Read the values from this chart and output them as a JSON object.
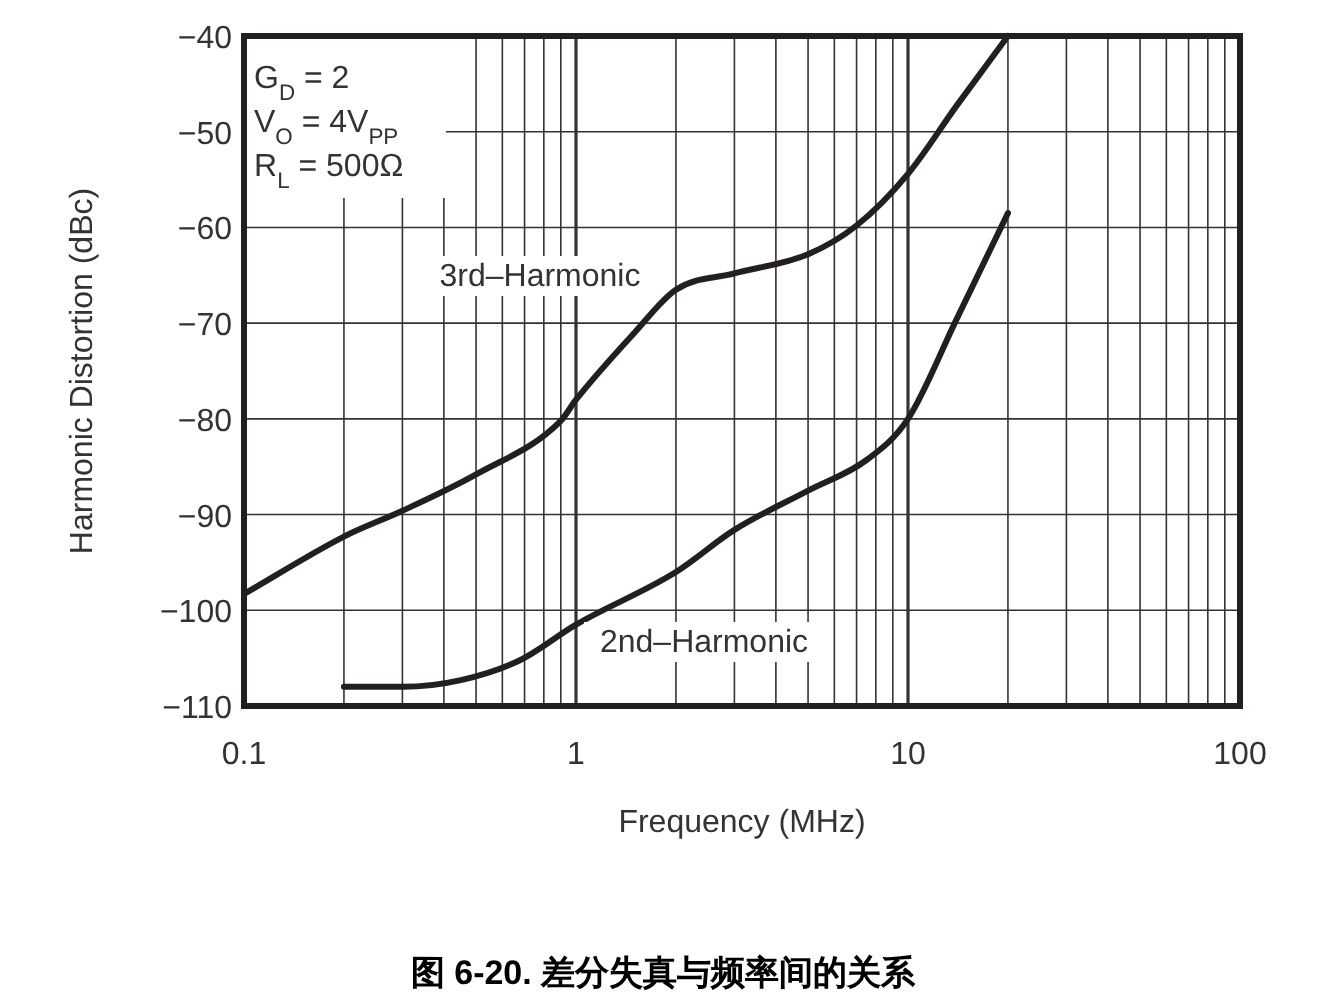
{
  "chart_data": {
    "type": "line",
    "title": "图 6-20. 差分失真与频率间的关系",
    "xlabel": "Frequency (MHz)",
    "ylabel": "Harmonic Distortion (dBc)",
    "log": "x",
    "annotations": [
      "G$_{D}$ = 2",
      "V$_{O}$ = 4V$_{PP}$",
      "R$_{L}$ = 500Ω"
    ],
    "series": [
      {
        "name": "3rd–Harmonic",
        "color": "#231f20",
        "x": [
          0.1,
          0.2,
          0.3,
          0.5,
          0.9,
          1,
          1.5,
          2,
          3,
          5,
          7,
          10,
          14,
          20
        ],
        "values": [
          -98.3,
          -92.3,
          -89.6,
          -85.8,
          -80.2,
          -78,
          -71,
          -66.5,
          -64.8,
          -62.8,
          -59.8,
          -54.4,
          -47.3,
          -40
        ]
      },
      {
        "name": "2nd–Harmonic",
        "color": "#231f20",
        "x": [
          0.2,
          0.3,
          0.45,
          0.68,
          1,
          2,
          3,
          5,
          7.5,
          10,
          14,
          20
        ],
        "values": [
          -108,
          -108,
          -107.3,
          -105.2,
          -101.5,
          -96,
          -91.6,
          -87.5,
          -84.3,
          -80,
          -69.6,
          -58.5
        ]
      }
    ],
    "xlim": [
      0.1,
      100
    ],
    "ylim": [
      -110,
      -40
    ],
    "xticks": [
      0.1,
      {
        "value": 0.2,
        "label": null
      },
      {
        "value": 0.3,
        "label": null
      },
      {
        "value": 0.4,
        "label": null
      },
      {
        "value": 0.5,
        "label": null
      },
      {
        "value": 0.6,
        "label": null
      },
      {
        "value": 0.7,
        "label": null
      },
      {
        "value": 0.8,
        "label": null
      },
      {
        "value": 0.9,
        "label": null
      },
      1,
      {
        "value": 2,
        "label": null
      },
      {
        "value": 3,
        "label": null
      },
      {
        "value": 4,
        "label": null
      },
      {
        "value": 5,
        "label": null
      },
      {
        "value": 6,
        "label": null
      },
      {
        "value": 7,
        "label": null
      },
      {
        "value": 8,
        "label": null
      },
      {
        "value": 9,
        "label": null
      },
      10,
      {
        "value": 20,
        "label": null
      },
      {
        "value": 30,
        "label": null
      },
      {
        "value": 40,
        "label": null
      },
      {
        "value": 50,
        "label": null
      },
      {
        "value": 60,
        "label": null
      },
      {
        "value": 70,
        "label": null
      },
      {
        "value": 80,
        "label": null
      },
      {
        "value": 90,
        "label": null
      },
      100
    ],
    "yticks": [
      {
        "value": -110,
        "label": "−110"
      },
      {
        "value": -100,
        "label": "−100"
      },
      {
        "value": -90,
        "label": "−90"
      },
      {
        "value": -80,
        "label": "−80"
      },
      {
        "value": -70,
        "label": "−70"
      },
      {
        "value": -60,
        "label": "−60"
      },
      {
        "value": -50,
        "label": "−50"
      },
      {
        "value": -40,
        "label": "−40"
      }
    ],
    "grid": true,
    "line_style": "solid"
  }
}
